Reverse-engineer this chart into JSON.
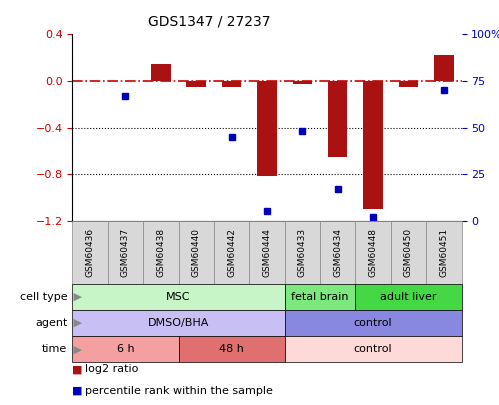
{
  "title": "GDS1347 / 27237",
  "samples": [
    "GSM60436",
    "GSM60437",
    "GSM60438",
    "GSM60440",
    "GSM60442",
    "GSM60444",
    "GSM60433",
    "GSM60434",
    "GSM60448",
    "GSM60450",
    "GSM60451"
  ],
  "log2_ratio": [
    0.0,
    0.0,
    0.15,
    -0.05,
    -0.05,
    -0.82,
    -0.03,
    -0.65,
    -1.1,
    -0.05,
    0.22
  ],
  "percentile_rank": [
    null,
    67,
    null,
    null,
    45,
    5,
    48,
    17,
    2,
    null,
    70
  ],
  "ylim_left": [
    -1.2,
    0.4
  ],
  "ylim_right": [
    0,
    100
  ],
  "xlim": [
    -0.5,
    10.5
  ],
  "cell_type_groups": [
    {
      "label": "MSC",
      "start": 0,
      "end": 5,
      "color": "#c8f5c8"
    },
    {
      "label": "fetal brain",
      "start": 6,
      "end": 7,
      "color": "#7de87d"
    },
    {
      "label": "adult liver",
      "start": 8,
      "end": 10,
      "color": "#44d944"
    }
  ],
  "agent_groups": [
    {
      "label": "DMSO/BHA",
      "start": 0,
      "end": 5,
      "color": "#c8c0f5"
    },
    {
      "label": "control",
      "start": 6,
      "end": 10,
      "color": "#8888e0"
    }
  ],
  "time_groups": [
    {
      "label": "6 h",
      "start": 0,
      "end": 2,
      "color": "#f5a0a0"
    },
    {
      "label": "48 h",
      "start": 3,
      "end": 5,
      "color": "#e07070"
    },
    {
      "label": "control",
      "start": 6,
      "end": 10,
      "color": "#ffd8d8"
    }
  ],
  "bar_color": "#aa1111",
  "dot_color": "#0000bb",
  "ref_line_color": "#cc0000",
  "legend_items": [
    {
      "label": "log2 ratio",
      "color": "#aa1111"
    },
    {
      "label": "percentile rank within the sample",
      "color": "#0000bb"
    }
  ],
  "sample_cell_color": "#d8d8d8",
  "sample_cell_edge": "#888888",
  "row_labels": [
    "cell type",
    "agent",
    "time"
  ],
  "arrow_color": "#888888"
}
